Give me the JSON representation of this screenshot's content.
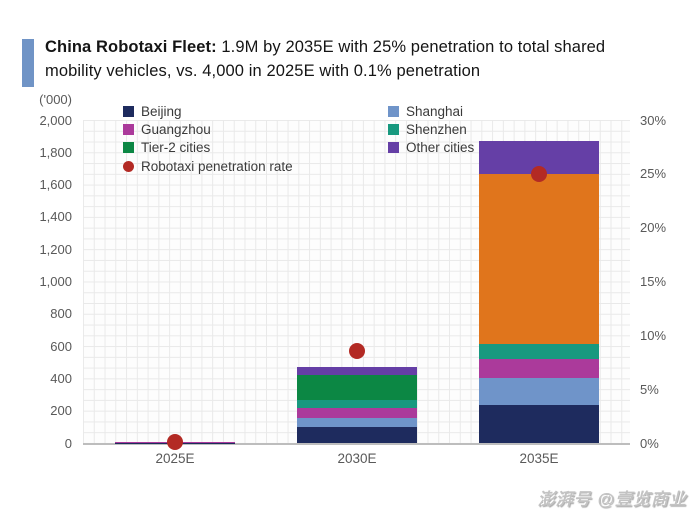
{
  "header": {
    "title_bold": "China Robotaxi Fleet:",
    "title_rest": " 1.9M by 2035E with 25% penetration to total shared mobility vehicles, vs. 4,000 in 2025E with 0.1% penetration",
    "accent_color": "#7094c6"
  },
  "chart_data": {
    "type": "bar",
    "subtype": "stacked-bar-with-penetration-rate-dots",
    "units_label": "('000)",
    "categories": [
      "2025E",
      "2030E",
      "2035E"
    ],
    "series": [
      {
        "name": "Beijing",
        "color": "#1e2b5e",
        "values": [
          2,
          100,
          235
        ]
      },
      {
        "name": "Shanghai",
        "color": "#6f94c9",
        "values": [
          1,
          52,
          167
        ]
      },
      {
        "name": "Guangzhou",
        "color": "#ab3a9b",
        "values": [
          0.5,
          62,
          118
        ]
      },
      {
        "name": "Shenzhen",
        "color": "#18997f",
        "values": [
          0.5,
          51,
          93
        ]
      },
      {
        "name": "Tier-2 cities",
        "color": "#0c8744",
        "values": [
          0,
          155,
          1055
        ],
        "color_overrides": {
          "2": "#e0751c"
        }
      },
      {
        "name": "Other cities",
        "color": "#653fa6",
        "values": [
          0,
          50,
          200
        ]
      }
    ],
    "penetration": {
      "name": "Robotaxi penetration rate",
      "color": "#b32a24",
      "values_pct": [
        0.1,
        8.5,
        25
      ]
    },
    "left_axis": {
      "min": 0,
      "max": 2000,
      "step": 200,
      "tick_labels": [
        "0",
        "200",
        "400",
        "600",
        "800",
        "1,000",
        "1,200",
        "1,400",
        "1,600",
        "1,800",
        "2,000"
      ]
    },
    "right_axis": {
      "min": 0,
      "max": 30,
      "step": 5,
      "tick_labels": [
        "0%",
        "5%",
        "10%",
        "15%",
        "20%",
        "25%",
        "30%"
      ]
    },
    "legend_columns": [
      [
        "Beijing",
        "Guangzhou",
        "Tier-2 cities",
        "Robotaxi penetration rate"
      ],
      [
        "Shanghai",
        "Shenzhen",
        "Other cities"
      ]
    ],
    "grid": "fine-mesh",
    "legend_position": "top-inside",
    "totals_note": {
      "2025E": 4,
      "2030E": 470,
      "2035E": 1868
    }
  },
  "watermark": {
    "text": "澎湃号 @壹览商业"
  }
}
